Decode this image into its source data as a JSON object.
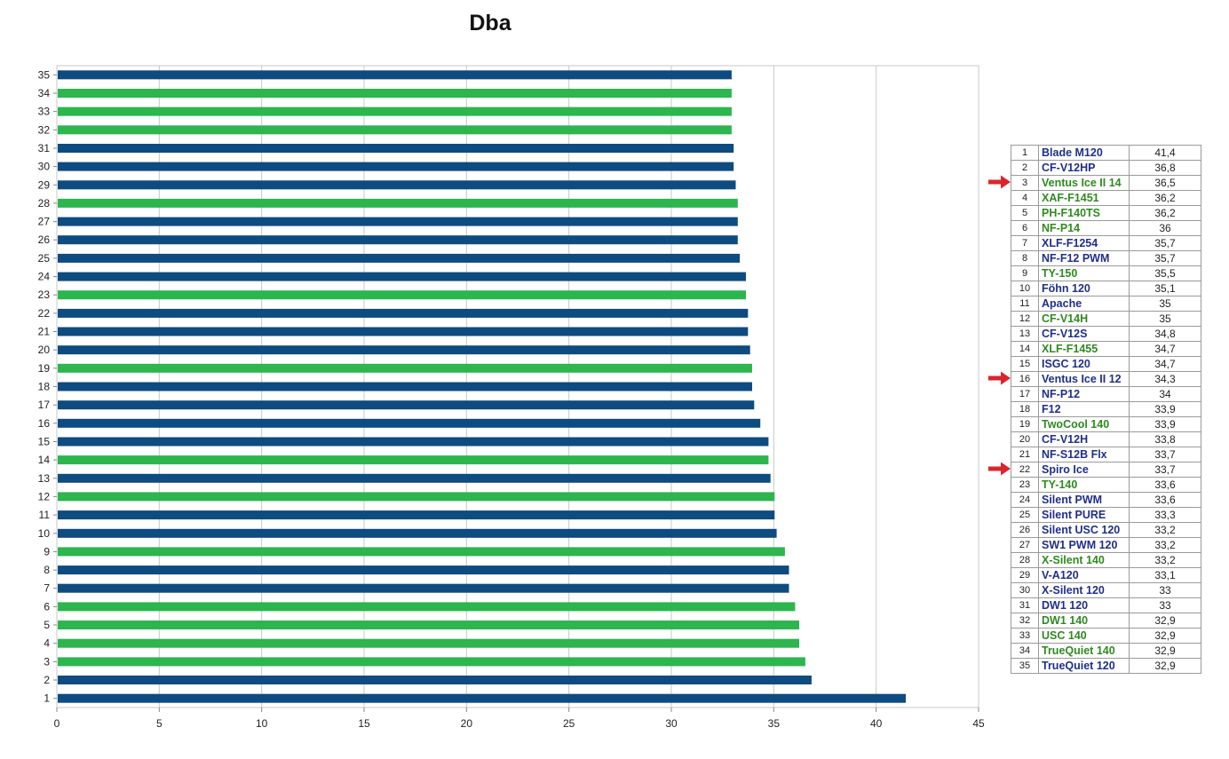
{
  "colors": {
    "blue": "#0e4b80",
    "green": "#2db54e",
    "grid": "#c8c8c8",
    "arrow": "#d9262b"
  },
  "chart_data": {
    "type": "bar",
    "orientation": "horizontal",
    "title": "Dba",
    "xlabel": "",
    "ylabel": "",
    "xlim": [
      0,
      45
    ],
    "xticks": [
      "0",
      "5",
      "10",
      "15",
      "20",
      "25",
      "30",
      "35",
      "40",
      "45"
    ],
    "grid": true,
    "categories": [
      "1",
      "2",
      "3",
      "4",
      "5",
      "6",
      "7",
      "8",
      "9",
      "10",
      "11",
      "12",
      "13",
      "14",
      "15",
      "16",
      "17",
      "18",
      "19",
      "20",
      "21",
      "22",
      "23",
      "24",
      "25",
      "26",
      "27",
      "28",
      "29",
      "30",
      "31",
      "32",
      "33",
      "34",
      "35"
    ],
    "values": [
      41.4,
      36.8,
      36.5,
      36.2,
      36.2,
      36,
      35.7,
      35.7,
      35.5,
      35.1,
      35,
      35,
      34.8,
      34.7,
      34.7,
      34.3,
      34,
      33.9,
      33.9,
      33.8,
      33.7,
      33.7,
      33.6,
      33.6,
      33.3,
      33.2,
      33.2,
      33.2,
      33.1,
      33,
      33,
      32.9,
      32.9,
      32.9,
      32.9
    ],
    "bar_colors": [
      "blue",
      "blue",
      "green",
      "green",
      "green",
      "green",
      "blue",
      "blue",
      "green",
      "blue",
      "blue",
      "green",
      "blue",
      "green",
      "blue",
      "blue",
      "blue",
      "blue",
      "green",
      "blue",
      "blue",
      "blue",
      "green",
      "blue",
      "blue",
      "blue",
      "blue",
      "green",
      "blue",
      "blue",
      "blue",
      "green",
      "green",
      "green",
      "blue"
    ]
  },
  "legend": {
    "rows": [
      {
        "rank": "1",
        "name": "Blade M120",
        "value": "41,4",
        "color": "blue"
      },
      {
        "rank": "2",
        "name": "CF-V12HP",
        "value": "36,8",
        "color": "blue"
      },
      {
        "rank": "3",
        "name": "Ventus Ice II 14",
        "value": "36,5",
        "color": "green",
        "arrow": true
      },
      {
        "rank": "4",
        "name": "XAF-F1451",
        "value": "36,2",
        "color": "green"
      },
      {
        "rank": "5",
        "name": "PH-F140TS",
        "value": "36,2",
        "color": "green"
      },
      {
        "rank": "6",
        "name": "NF-P14",
        "value": "36",
        "color": "green"
      },
      {
        "rank": "7",
        "name": "XLF-F1254",
        "value": "35,7",
        "color": "blue"
      },
      {
        "rank": "8",
        "name": "NF-F12 PWM",
        "value": "35,7",
        "color": "blue"
      },
      {
        "rank": "9",
        "name": "TY-150",
        "value": "35,5",
        "color": "green"
      },
      {
        "rank": "10",
        "name": "Föhn 120",
        "value": "35,1",
        "color": "blue"
      },
      {
        "rank": "11",
        "name": "Apache",
        "value": "35",
        "color": "blue"
      },
      {
        "rank": "12",
        "name": "CF-V14H",
        "value": "35",
        "color": "green"
      },
      {
        "rank": "13",
        "name": "CF-V12S",
        "value": "34,8",
        "color": "blue"
      },
      {
        "rank": "14",
        "name": "XLF-F1455",
        "value": "34,7",
        "color": "green"
      },
      {
        "rank": "15",
        "name": "ISGC 120",
        "value": "34,7",
        "color": "blue"
      },
      {
        "rank": "16",
        "name": "Ventus Ice II 12",
        "value": "34,3",
        "color": "blue",
        "arrow": true
      },
      {
        "rank": "17",
        "name": "NF-P12",
        "value": "34",
        "color": "blue"
      },
      {
        "rank": "18",
        "name": "F12",
        "value": "33,9",
        "color": "blue"
      },
      {
        "rank": "19",
        "name": "TwoCool 140",
        "value": "33,9",
        "color": "green"
      },
      {
        "rank": "20",
        "name": "CF-V12H",
        "value": "33,8",
        "color": "blue"
      },
      {
        "rank": "21",
        "name": "NF-S12B Flx",
        "value": "33,7",
        "color": "blue"
      },
      {
        "rank": "22",
        "name": "Spiro Ice",
        "value": "33,7",
        "color": "blue",
        "arrow": true
      },
      {
        "rank": "23",
        "name": "TY-140",
        "value": "33,6",
        "color": "green"
      },
      {
        "rank": "24",
        "name": "Silent PWM",
        "value": "33,6",
        "color": "blue"
      },
      {
        "rank": "25",
        "name": "Silent PURE",
        "value": "33,3",
        "color": "blue"
      },
      {
        "rank": "26",
        "name": "Silent USC 120",
        "value": "33,2",
        "color": "blue"
      },
      {
        "rank": "27",
        "name": "SW1 PWM 120",
        "value": "33,2",
        "color": "blue"
      },
      {
        "rank": "28",
        "name": "X-Silent 140",
        "value": "33,2",
        "color": "green"
      },
      {
        "rank": "29",
        "name": "V-A120",
        "value": "33,1",
        "color": "blue"
      },
      {
        "rank": "30",
        "name": "X-Silent 120",
        "value": "33",
        "color": "blue"
      },
      {
        "rank": "31",
        "name": "DW1 120",
        "value": "33",
        "color": "blue"
      },
      {
        "rank": "32",
        "name": "DW1 140",
        "value": "32,9",
        "color": "green"
      },
      {
        "rank": "33",
        "name": "USC 140",
        "value": "32,9",
        "color": "green"
      },
      {
        "rank": "34",
        "name": "TrueQuiet 140",
        "value": "32,9",
        "color": "green"
      },
      {
        "rank": "35",
        "name": "TrueQuiet 120",
        "value": "32,9",
        "color": "blue"
      }
    ]
  }
}
